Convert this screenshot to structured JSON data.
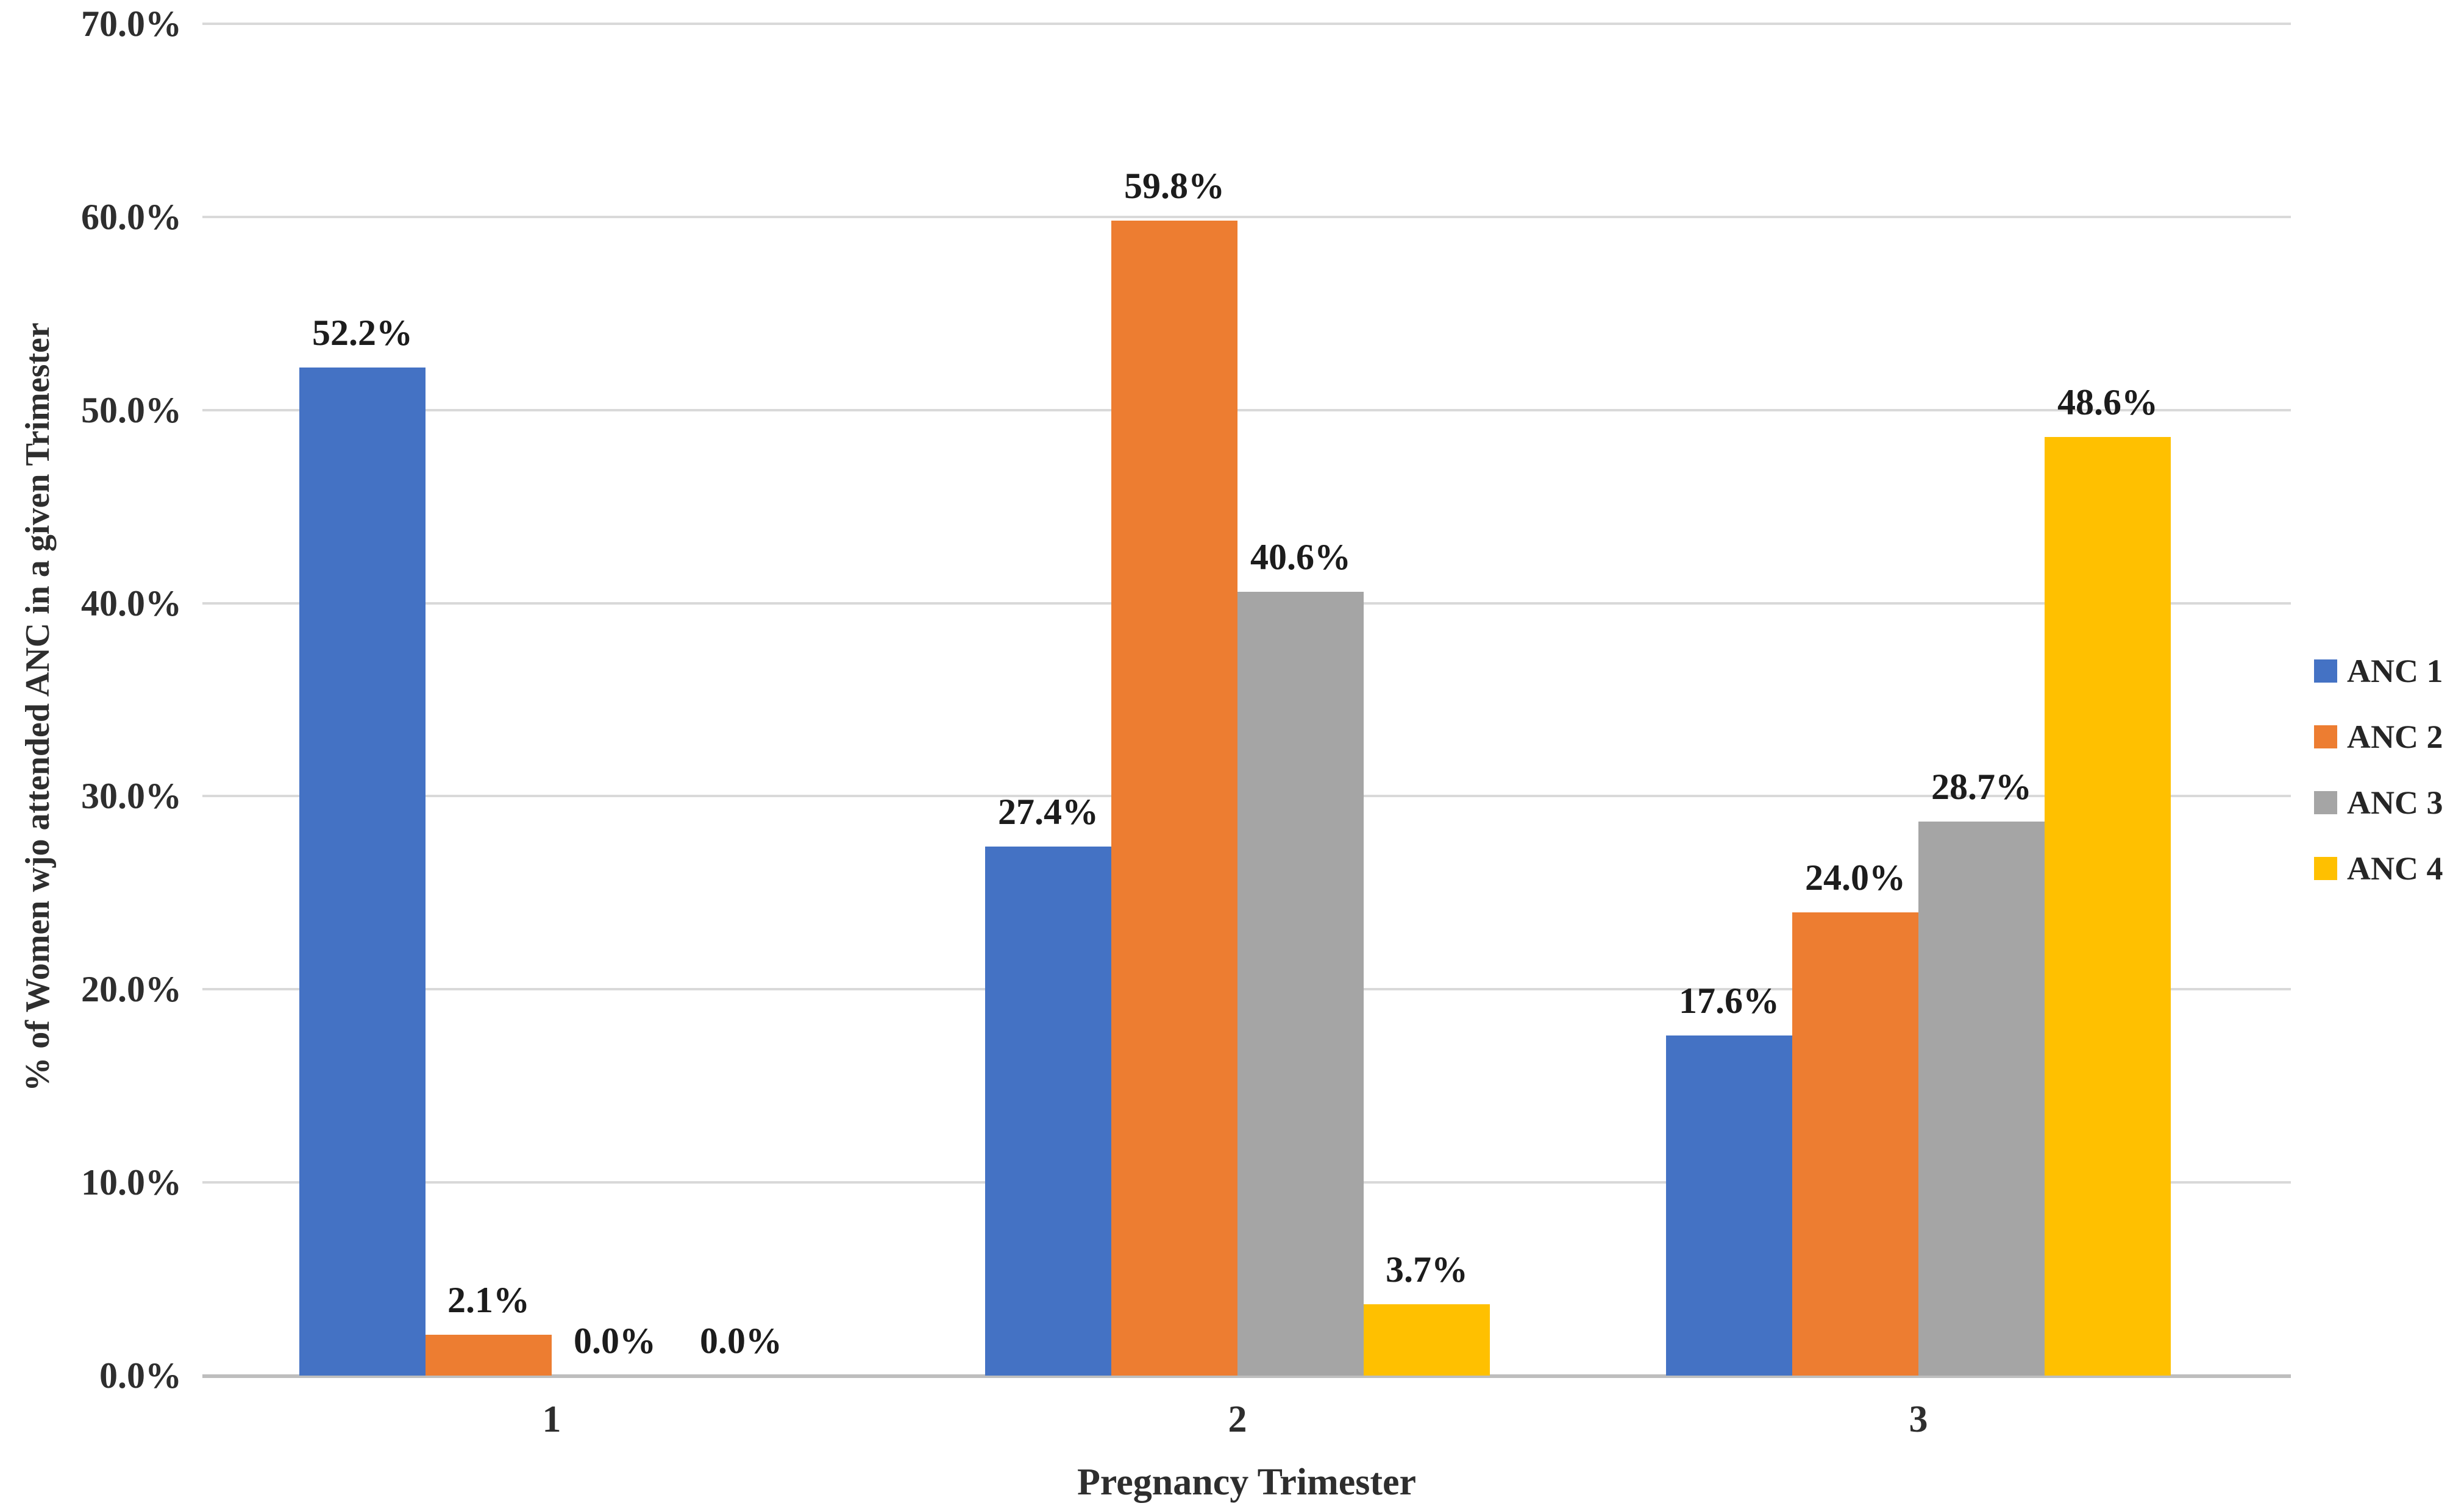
{
  "chart_data": {
    "type": "bar",
    "categories": [
      "1",
      "2",
      "3"
    ],
    "series": [
      {
        "name": "ANC 1",
        "color": "#4472C4",
        "values": [
          52.2,
          27.4,
          17.6
        ],
        "labels": [
          "52.2%",
          "27.4%",
          "17.6%"
        ]
      },
      {
        "name": "ANC 2",
        "color": "#ED7D31",
        "values": [
          2.1,
          59.8,
          24.0
        ],
        "labels": [
          "2.1%",
          "59.8%",
          "24.0%"
        ]
      },
      {
        "name": "ANC 3",
        "color": "#A5A5A5",
        "values": [
          0.0,
          40.6,
          28.7
        ],
        "labels": [
          "0.0%",
          "40.6%",
          "28.7%"
        ]
      },
      {
        "name": "ANC 4",
        "color": "#FFC000",
        "values": [
          0.0,
          3.7,
          48.6
        ],
        "labels": [
          "0.0%",
          "3.7%",
          "48.6%"
        ]
      }
    ],
    "title": "",
    "xlabel": "Pregnancy Trimester",
    "ylabel": "% of Women wjo attended ANC in a given Trimester",
    "ylim": [
      0,
      70
    ],
    "yticks": [
      "70.0%",
      "60.0%",
      "50.0%",
      "40.0%",
      "30.0%",
      "20.0%",
      "10.0%",
      "0.0%"
    ],
    "grid": true,
    "legend_position": "right"
  },
  "legend": {
    "entries": [
      {
        "label": "ANC 1",
        "color": "#4472C4"
      },
      {
        "label": "ANC 2",
        "color": "#ED7D31"
      },
      {
        "label": "ANC 3",
        "color": "#A5A5A5"
      },
      {
        "label": "ANC 4",
        "color": "#FFC000"
      }
    ]
  },
  "styles": {
    "gridline_color": "#D9D9D9",
    "axisline_color": "#BEBEBE",
    "tick_text_color": "#2E2E2E",
    "label_text_color": "#1C1C1C",
    "background": "#FFFFFF"
  }
}
